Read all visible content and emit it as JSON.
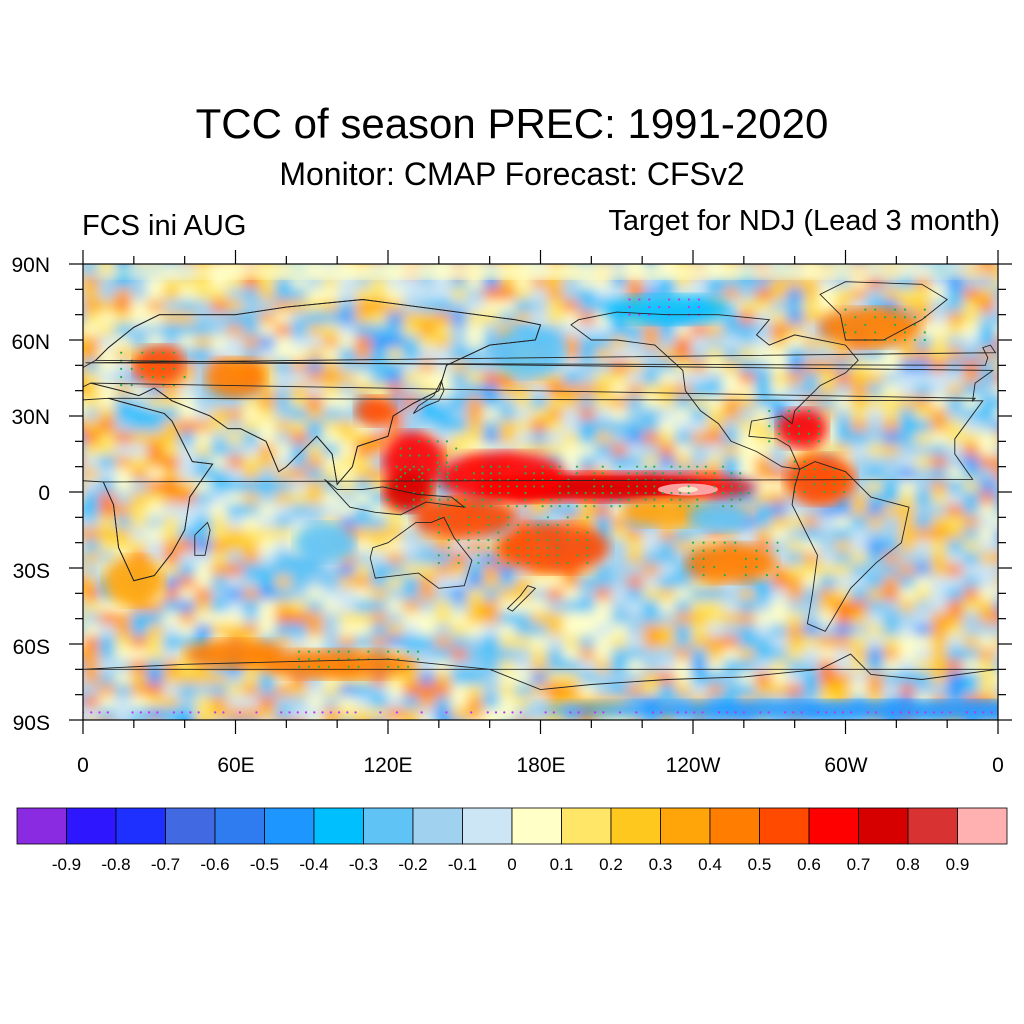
{
  "header": {
    "title": "TCC of season PREC: 1991-2020",
    "subtitle": "Monitor: CMAP   Forecast: CFSv2",
    "left_label": "FCS ini AUG",
    "right_label": "Target for NDJ (Lead 3 month)"
  },
  "map": {
    "lat_ticks": [
      "90N",
      "60N",
      "30N",
      "0",
      "30S",
      "60S",
      "90S"
    ],
    "lon_ticks": [
      "0",
      "60E",
      "120E",
      "180E",
      "120W",
      "60W",
      "0"
    ]
  },
  "colorbar": {
    "colors": [
      "#8a2be2",
      "#2e16ff",
      "#1e30ff",
      "#4169e1",
      "#2e7cf0",
      "#1e96ff",
      "#00bfff",
      "#5fc3f5",
      "#a0d2f0",
      "#cce6f5",
      "#ffffc8",
      "#ffe666",
      "#ffc81e",
      "#ffa50a",
      "#ff7d00",
      "#ff4a00",
      "#ff0000",
      "#d60000",
      "#d83232",
      "#ffb0b0"
    ],
    "labels": [
      "-0.9",
      "-0.8",
      "-0.7",
      "-0.6",
      "-0.5",
      "-0.4",
      "-0.3",
      "-0.2",
      "-0.1",
      "0",
      "0.1",
      "0.2",
      "0.3",
      "0.4",
      "0.5",
      "0.6",
      "0.7",
      "0.8",
      "0.9"
    ]
  },
  "stipple_colors": {
    "positive": "#22b04a",
    "negative": "#c030ff"
  }
}
